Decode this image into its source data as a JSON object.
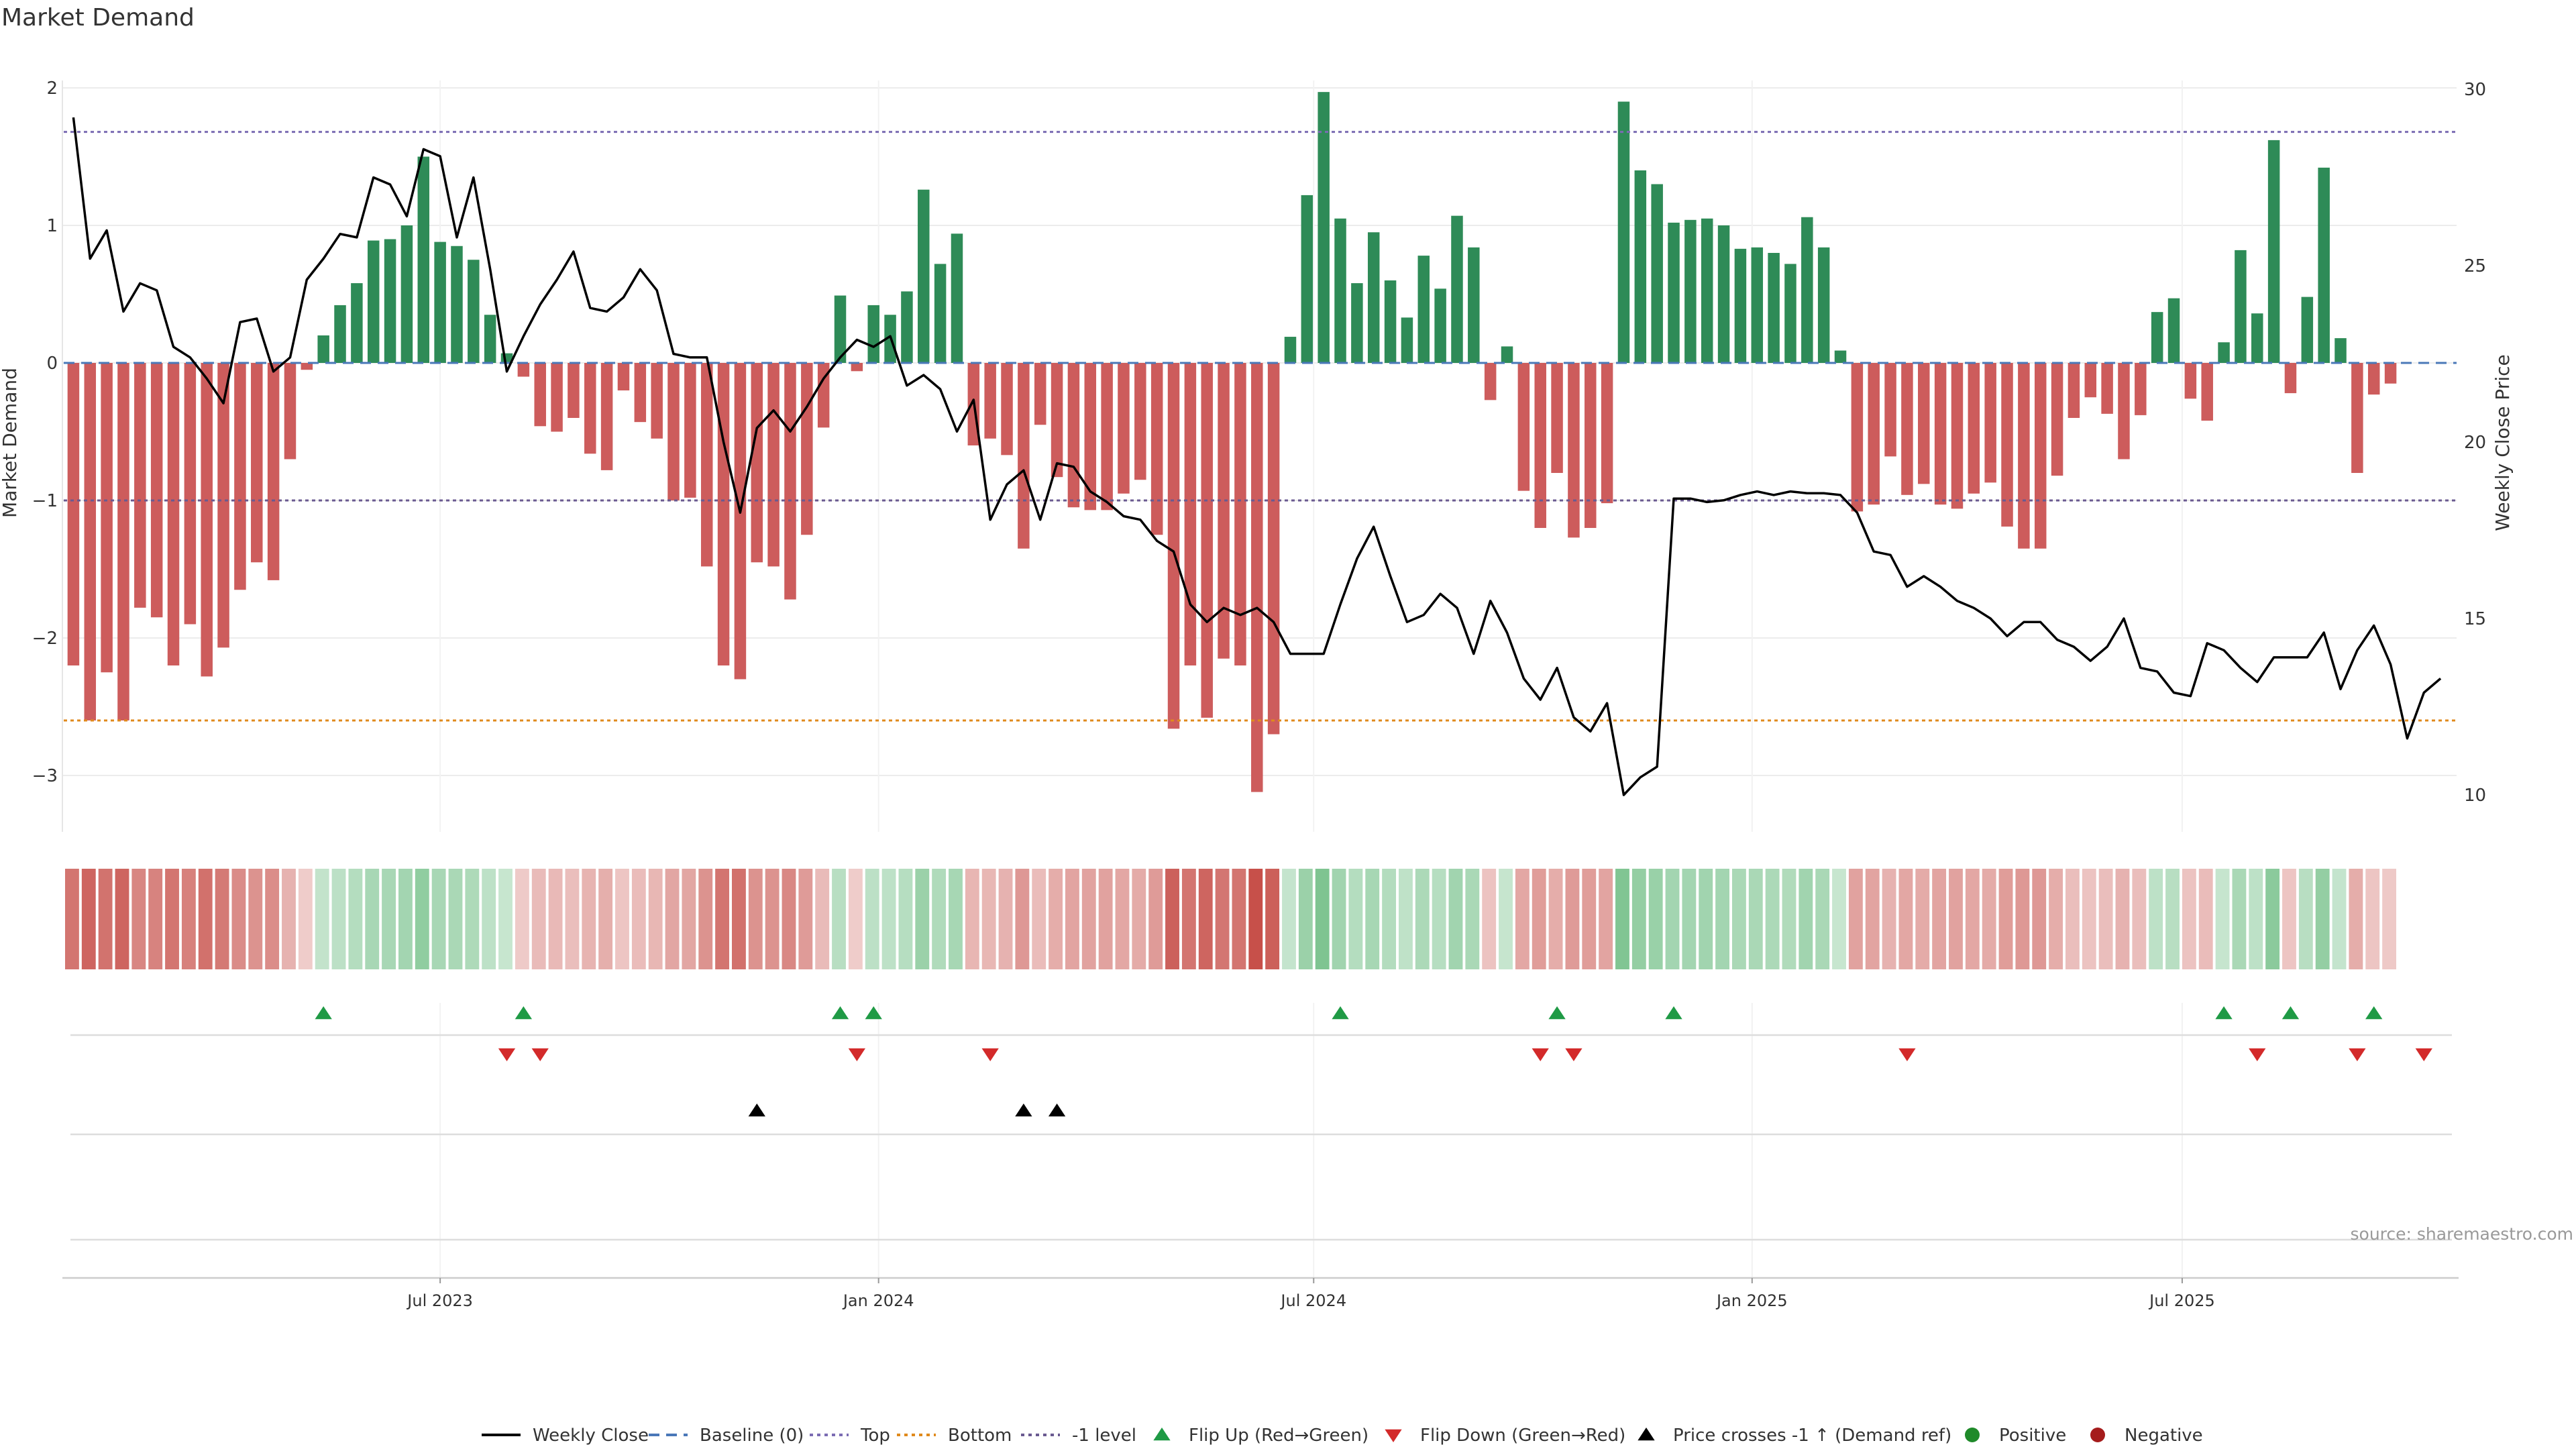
{
  "chart_data": {
    "type": "bar",
    "title": "Market Demand",
    "ylabel_left": "Market Demand",
    "ylabel_right": "Weekly Close Price",
    "y_left_range": [
      -3.4,
      2.0
    ],
    "y_left_ticks": [
      2,
      1,
      0,
      -1,
      -2,
      -3
    ],
    "y_left_tick_labels": [
      "2",
      "1",
      "0",
      "−1",
      "−2",
      "−3"
    ],
    "y_right_range": [
      9.6,
      30.0
    ],
    "y_right_ticks": [
      30,
      25,
      20,
      15,
      10
    ],
    "y_right_tick_labels": [
      "30",
      "25",
      "20",
      "15",
      "10"
    ],
    "x_ticks": [
      {
        "label": "Jul 2023",
        "week": 22.5
      },
      {
        "label": "Jan 2024",
        "week": 48.8
      },
      {
        "label": "Jul 2024",
        "week": 74.9
      },
      {
        "label": "Jan 2025",
        "week": 101.2
      },
      {
        "label": "Jul 2025",
        "week": 127.0
      }
    ],
    "reference_lines": {
      "top": 1.68,
      "bottom": -2.6,
      "minus_one": -1.0,
      "baseline": 0
    },
    "demand": [
      -2.2,
      -2.6,
      -2.25,
      -2.6,
      -1.78,
      -1.85,
      -2.2,
      -1.9,
      -2.28,
      -2.07,
      -1.65,
      -1.45,
      -1.58,
      -0.7,
      -0.05,
      0.2,
      0.42,
      0.58,
      0.89,
      0.9,
      1.0,
      1.5,
      0.88,
      0.85,
      0.75,
      0.35,
      0.07,
      -0.1,
      -0.46,
      -0.5,
      -0.4,
      -0.66,
      -0.78,
      -0.2,
      -0.43,
      -0.55,
      -1.0,
      -0.98,
      -1.48,
      -2.2,
      -2.3,
      -1.45,
      -1.48,
      -1.72,
      -1.25,
      -0.47,
      0.49,
      -0.06,
      0.42,
      0.35,
      0.52,
      1.26,
      0.72,
      0.94,
      -0.6,
      -0.55,
      -0.67,
      -1.35,
      -0.45,
      -0.83,
      -1.05,
      -1.07,
      -1.07,
      -0.95,
      -0.85,
      -1.25,
      -2.66,
      -2.2,
      -2.58,
      -2.15,
      -2.2,
      -3.12,
      -2.7,
      0.19,
      1.22,
      1.97,
      1.05,
      0.58,
      0.95,
      0.6,
      0.33,
      0.78,
      0.54,
      1.07,
      0.84,
      -0.27,
      0.12,
      -0.93,
      -1.2,
      -0.8,
      -1.27,
      -1.2,
      -1.02,
      1.9,
      1.4,
      1.3,
      1.02,
      1.04,
      1.05,
      1.0,
      0.83,
      0.84,
      0.8,
      0.72,
      1.06,
      0.84,
      0.09,
      -1.08,
      -1.03,
      -0.68,
      -0.96,
      -0.88,
      -1.03,
      -1.06,
      -0.95,
      -0.87,
      -1.19,
      -1.35,
      -1.35,
      -0.82,
      -0.4,
      -0.25,
      -0.37,
      -0.7,
      -0.38,
      0.37,
      0.47,
      -0.26,
      -0.42,
      0.15,
      0.82,
      0.36,
      1.62,
      -0.22,
      0.48,
      1.42,
      0.18,
      -0.8,
      -0.23,
      -0.15
    ],
    "weekly_close": [
      29.2,
      25.2,
      26.0,
      23.7,
      24.5,
      24.3,
      22.7,
      22.4,
      21.8,
      21.1,
      23.4,
      23.5,
      22.0,
      22.4,
      24.6,
      25.2,
      25.9,
      25.8,
      27.5,
      27.3,
      26.4,
      28.3,
      28.1,
      25.8,
      27.5,
      24.9,
      22.0,
      23.0,
      23.9,
      24.6,
      25.4,
      23.8,
      23.7,
      24.1,
      24.9,
      24.3,
      22.5,
      22.4,
      22.4,
      20.0,
      18.0,
      20.4,
      20.9,
      20.3,
      21.0,
      21.8,
      22.4,
      22.9,
      22.7,
      23.0,
      21.6,
      21.9,
      21.5,
      20.3,
      21.2,
      17.8,
      18.8,
      19.2,
      17.8,
      19.4,
      19.3,
      18.6,
      18.3,
      17.9,
      17.8,
      17.2,
      16.9,
      15.4,
      14.9,
      15.3,
      15.1,
      15.3,
      14.9,
      14.0,
      14.0,
      14.0,
      15.4,
      16.7,
      17.6,
      16.2,
      14.9,
      15.1,
      15.7,
      15.3,
      14.0,
      15.5,
      14.6,
      13.3,
      12.7,
      13.6,
      12.2,
      11.8,
      12.6,
      10.0,
      10.5,
      10.8,
      18.4,
      18.4,
      18.3,
      18.35,
      18.5,
      18.6,
      18.5,
      18.6,
      18.55,
      18.55,
      18.5,
      18.0,
      16.9,
      16.8,
      15.9,
      16.2,
      15.9,
      15.5,
      15.3,
      15.0,
      14.5,
      14.9,
      14.9,
      14.4,
      14.2,
      13.8,
      14.2,
      15.0,
      13.6,
      13.5,
      12.9,
      12.8,
      14.3,
      14.1,
      13.6,
      13.2,
      13.9,
      13.9,
      13.9,
      14.6,
      13.0,
      14.1,
      14.8,
      13.7,
      11.6,
      12.9,
      13.3
    ],
    "flip_up_weeks": [
      15,
      27,
      46,
      48,
      76,
      89,
      96,
      129,
      133,
      138
    ],
    "flip_down_weeks": [
      26,
      28,
      47,
      55,
      88,
      90,
      110,
      131,
      137,
      141
    ],
    "price_cross_weeks": [
      41,
      57,
      59
    ],
    "legend": [
      {
        "label": "Weekly Close",
        "color": "#000000",
        "icon": "solid-line-icon"
      },
      {
        "label": "Baseline (0)",
        "color": "#4a78b8",
        "icon": "dashed-line-icon"
      },
      {
        "label": "Top",
        "color": "#7b6cb3",
        "icon": "dotted-line-icon"
      },
      {
        "label": "Bottom",
        "color": "#e08a1c",
        "icon": "dotted-line-icon"
      },
      {
        "label": "-1 level",
        "color": "#6a5a90",
        "icon": "dotted-line-icon"
      },
      {
        "label": "Flip Up (Red→Green)",
        "color": "#1f9a45",
        "icon": "triangle-up-icon"
      },
      {
        "label": "Flip Down (Green→Red)",
        "color": "#d32a2a",
        "icon": "triangle-down-icon"
      },
      {
        "label": "Price crosses -1 ↑ (Demand ref)",
        "color": "#000000",
        "icon": "triangle-up-icon"
      },
      {
        "label": "Positive",
        "color": "#1f8a2a",
        "icon": "circle-icon"
      },
      {
        "label": "Negative",
        "color": "#a51c1c",
        "icon": "circle-icon"
      }
    ],
    "colors": {
      "positive_bar": "#2e8b57",
      "negative_bar": "#cd5c5c",
      "grid": "#ececec",
      "axis_text": "#333333"
    },
    "source": "source: sharemaestro.com"
  }
}
